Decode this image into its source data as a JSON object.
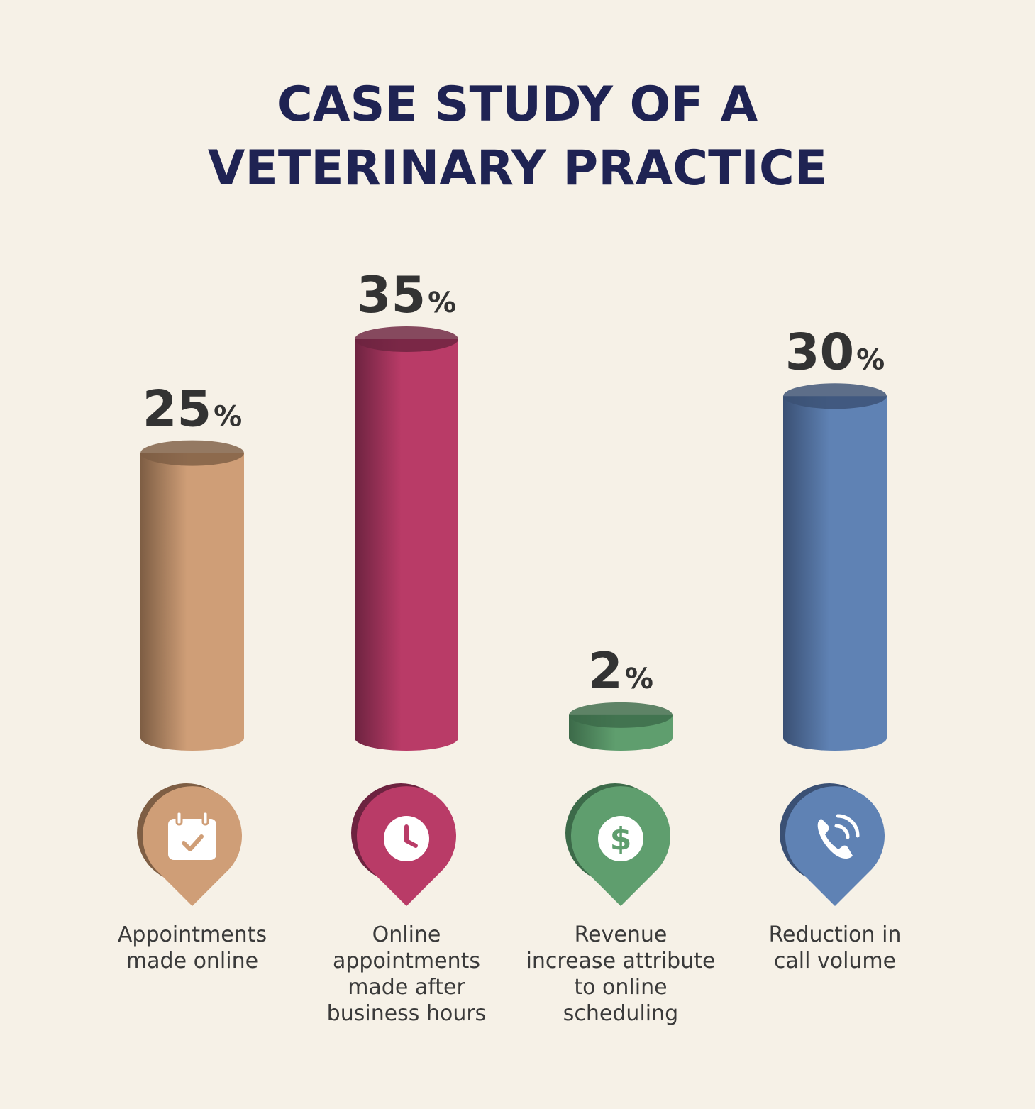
{
  "title_line1": "CASE STUDY OF A",
  "title_line2": "VETERINARY PRACTICE",
  "chart_data": {
    "type": "bar",
    "title": "CASE STUDY OF A VETERINARY PRACTICE",
    "categories": [
      "Appointments made online",
      "Online appointments made after business hours",
      "Revenue increase attribute to online scheduling",
      "Reduction in call volume"
    ],
    "values": [
      25,
      35,
      2,
      30
    ],
    "value_unit": "%",
    "value_labels": [
      "25",
      "35",
      "2",
      "30"
    ],
    "percent_sign": "%",
    "ylim": [
      0,
      35
    ],
    "grid": false,
    "legend": "none",
    "bar_style": "3d-cylinder",
    "colors": [
      "#cf9e77",
      "#b93b67",
      "#5f9e6e",
      "#5f82b4"
    ],
    "dark_colors": [
      "#7e5e44",
      "#6d2340",
      "#3c6a49",
      "#3a5074"
    ],
    "icons": [
      "calendar-check-icon",
      "clock-icon",
      "dollar-icon",
      "phone-icon"
    ]
  },
  "labels": [
    {
      "text": "Appointments\nmade online"
    },
    {
      "text": "Online\nappointments\nmade after\nbusiness hours"
    },
    {
      "text": "Revenue\nincrease attribute\nto online\nscheduling"
    },
    {
      "text": "Reduction in\ncall volume"
    }
  ]
}
